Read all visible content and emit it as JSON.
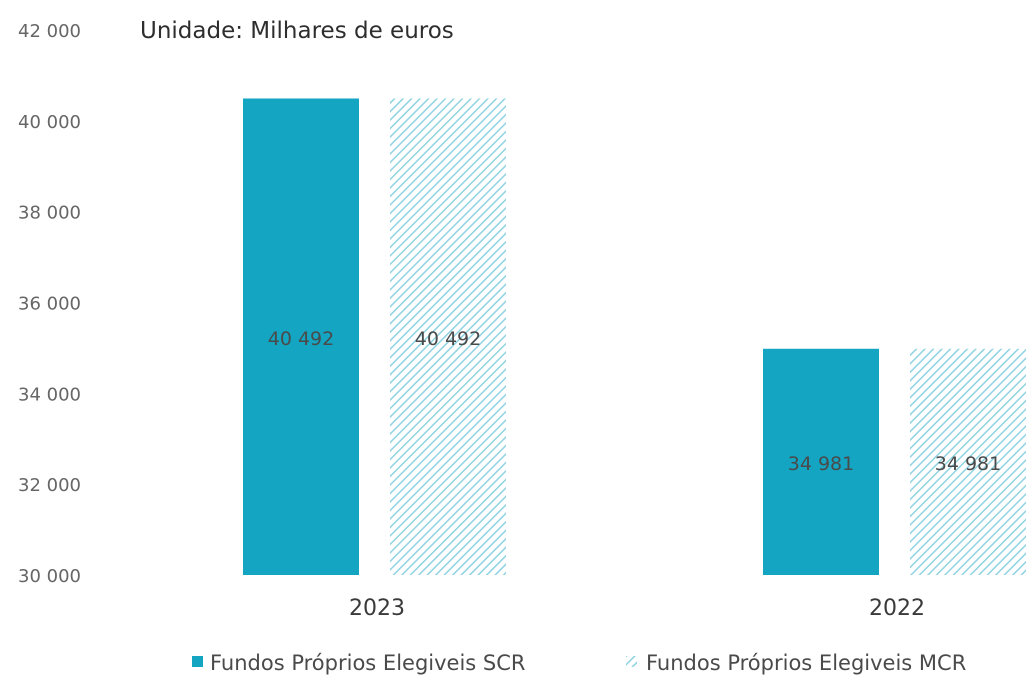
{
  "chart_data": {
    "type": "bar",
    "title": "Unidade: Milhares de euros",
    "categories": [
      "2023",
      "2022"
    ],
    "series": [
      {
        "name": "Fundos Próprios Elegiveis SCR",
        "values": [
          40492,
          34981
        ],
        "value_labels": [
          "40 492",
          "34 981"
        ],
        "color": "#13a5c2",
        "fill": "solid"
      },
      {
        "name": "Fundos Próprios Elegiveis MCR",
        "values": [
          40492,
          34981
        ],
        "value_labels": [
          "40 492",
          "34 981"
        ],
        "color": "#8fd3e2",
        "fill": "hatched"
      }
    ],
    "ylim": [
      30000,
      42000
    ],
    "yticks": [
      30000,
      32000,
      34000,
      36000,
      38000,
      40000,
      42000
    ],
    "ytick_labels": [
      "30 000",
      "32 000",
      "34 000",
      "36 000",
      "38 000",
      "40 000",
      "42 000"
    ],
    "grid": false,
    "legend": "bottom",
    "xlabel": "",
    "ylabel": ""
  }
}
